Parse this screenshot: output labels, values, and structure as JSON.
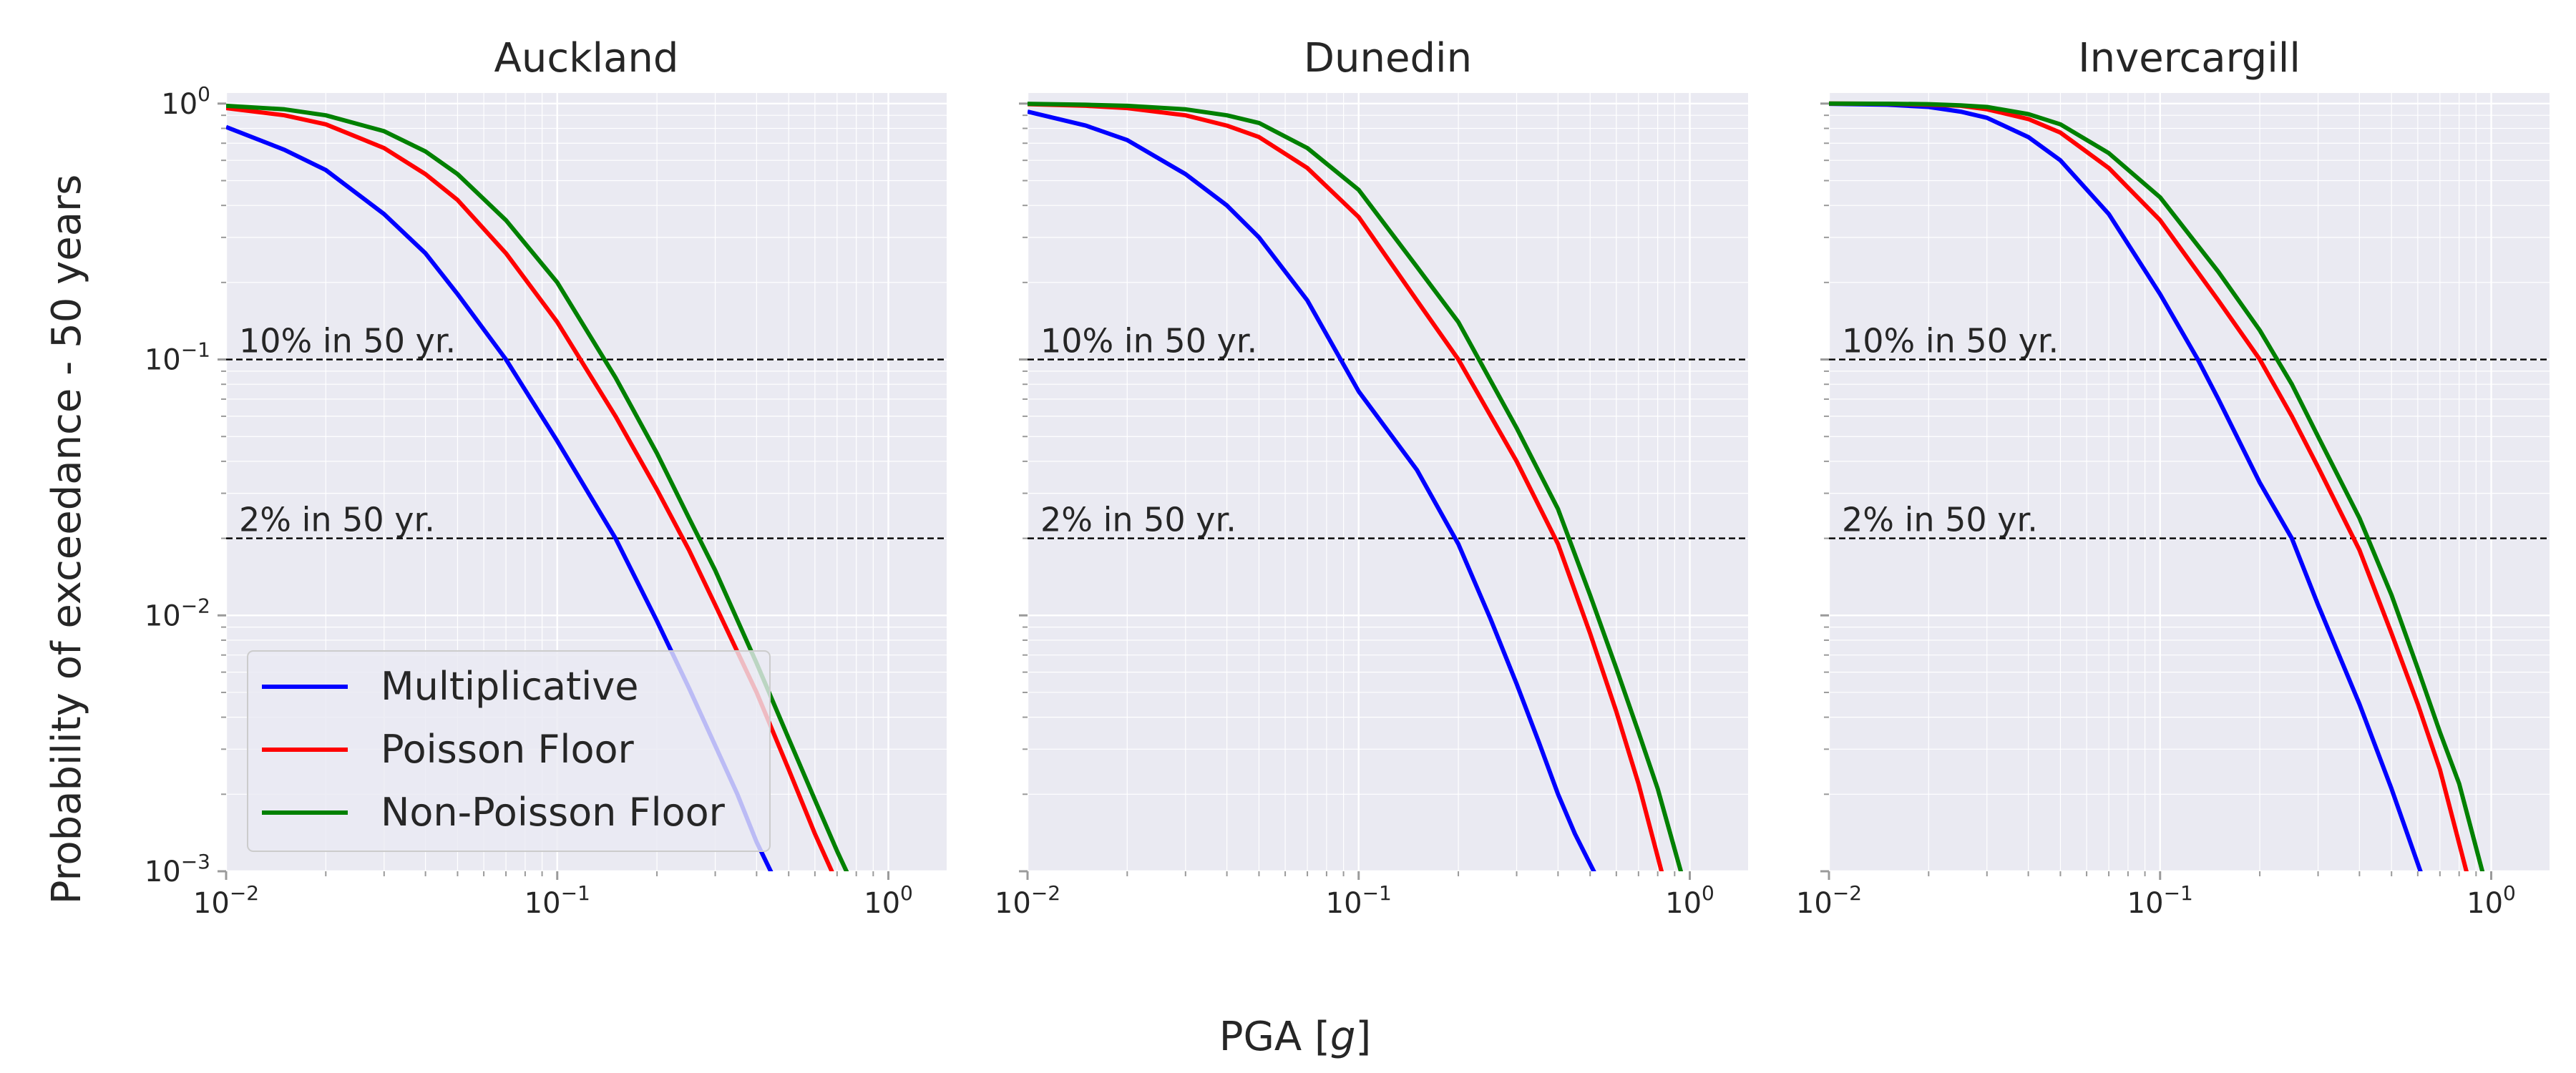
{
  "figure": {
    "ylabel": "Probability of exceedance - 50 years",
    "xlabel": "PGA [g]",
    "xlabel_parts": {
      "prefix": "PGA [",
      "var": "g",
      "suffix": "]"
    },
    "plot_background": "#eaeaf2",
    "grid_color": "#ffffff"
  },
  "legend": {
    "placement": "lower left of first panel",
    "entries": [
      {
        "label": "Multiplicative",
        "color": "#0000ff"
      },
      {
        "label": "Poisson Floor",
        "color": "#ff0000"
      },
      {
        "label": "Non-Poisson Floor",
        "color": "#008000"
      }
    ]
  },
  "chart_data": [
    {
      "type": "line",
      "title": "Auckland",
      "xscale": "log",
      "yscale": "log",
      "xlim": [
        0.01,
        1.5
      ],
      "ylim": [
        0.001,
        1.1
      ],
      "xticks": [
        {
          "base": "10",
          "exp": "−2",
          "value": 0.01
        },
        {
          "base": "10",
          "exp": "−1",
          "value": 0.1
        },
        {
          "base": "10",
          "exp": "0",
          "value": 1
        }
      ],
      "yticks": [
        {
          "base": "10",
          "exp": "0",
          "value": 1
        },
        {
          "base": "10",
          "exp": "−1",
          "value": 0.1
        },
        {
          "base": "10",
          "exp": "−2",
          "value": 0.01
        },
        {
          "base": "10",
          "exp": "−3",
          "value": 0.001
        }
      ],
      "reference_lines": [
        {
          "y": 0.1,
          "label": "10% in 50 yr."
        },
        {
          "y": 0.02,
          "label": "2% in 50 yr."
        }
      ],
      "series": [
        {
          "name": "Multiplicative",
          "color": "#0000ff",
          "x": [
            0.01,
            0.015,
            0.02,
            0.03,
            0.04,
            0.05,
            0.07,
            0.1,
            0.15,
            0.2,
            0.25,
            0.3,
            0.35,
            0.4,
            0.45
          ],
          "y": [
            0.81,
            0.66,
            0.55,
            0.37,
            0.26,
            0.18,
            0.1,
            0.048,
            0.02,
            0.0095,
            0.0052,
            0.0031,
            0.002,
            0.0013,
            0.00095
          ]
        },
        {
          "name": "Poisson Floor",
          "color": "#ff0000",
          "x": [
            0.01,
            0.015,
            0.02,
            0.03,
            0.04,
            0.05,
            0.07,
            0.1,
            0.15,
            0.2,
            0.25,
            0.3,
            0.4,
            0.5,
            0.6,
            0.7
          ],
          "y": [
            0.96,
            0.9,
            0.83,
            0.67,
            0.53,
            0.42,
            0.26,
            0.14,
            0.06,
            0.031,
            0.018,
            0.011,
            0.005,
            0.0025,
            0.0014,
            0.0009
          ]
        },
        {
          "name": "Non-Poisson Floor",
          "color": "#008000",
          "x": [
            0.01,
            0.015,
            0.02,
            0.03,
            0.04,
            0.05,
            0.07,
            0.1,
            0.15,
            0.2,
            0.25,
            0.3,
            0.4,
            0.5,
            0.6,
            0.7,
            0.77
          ],
          "y": [
            0.98,
            0.95,
            0.9,
            0.78,
            0.65,
            0.53,
            0.35,
            0.2,
            0.085,
            0.043,
            0.024,
            0.015,
            0.0065,
            0.0033,
            0.0019,
            0.0012,
            0.00092
          ]
        }
      ]
    },
    {
      "type": "line",
      "title": "Dunedin",
      "xscale": "log",
      "yscale": "log",
      "xlim": [
        0.01,
        1.5
      ],
      "ylim": [
        0.001,
        1.1
      ],
      "xticks": [
        {
          "base": "10",
          "exp": "−2",
          "value": 0.01
        },
        {
          "base": "10",
          "exp": "−1",
          "value": 0.1
        },
        {
          "base": "10",
          "exp": "0",
          "value": 1
        }
      ],
      "yticks": [],
      "reference_lines": [
        {
          "y": 0.1,
          "label": "10% in 50 yr."
        },
        {
          "y": 0.02,
          "label": "2% in 50 yr."
        }
      ],
      "series": [
        {
          "name": "Multiplicative",
          "color": "#0000ff",
          "x": [
            0.01,
            0.015,
            0.02,
            0.03,
            0.04,
            0.05,
            0.07,
            0.1,
            0.15,
            0.2,
            0.25,
            0.3,
            0.35,
            0.4,
            0.45,
            0.53
          ],
          "y": [
            0.93,
            0.82,
            0.72,
            0.53,
            0.4,
            0.3,
            0.17,
            0.075,
            0.037,
            0.019,
            0.0097,
            0.0054,
            0.0032,
            0.002,
            0.0014,
            0.00092
          ]
        },
        {
          "name": "Poisson Floor",
          "color": "#ff0000",
          "x": [
            0.01,
            0.015,
            0.02,
            0.03,
            0.04,
            0.05,
            0.07,
            0.1,
            0.15,
            0.2,
            0.3,
            0.4,
            0.5,
            0.6,
            0.7,
            0.83
          ],
          "y": [
            0.995,
            0.98,
            0.96,
            0.9,
            0.82,
            0.74,
            0.56,
            0.36,
            0.17,
            0.1,
            0.04,
            0.019,
            0.0085,
            0.0042,
            0.0022,
            0.00095
          ]
        },
        {
          "name": "Non-Poisson Floor",
          "color": "#008000",
          "x": [
            0.01,
            0.015,
            0.02,
            0.03,
            0.04,
            0.05,
            0.07,
            0.1,
            0.15,
            0.2,
            0.3,
            0.4,
            0.5,
            0.6,
            0.7,
            0.8,
            0.95
          ],
          "y": [
            0.998,
            0.99,
            0.98,
            0.95,
            0.9,
            0.84,
            0.67,
            0.46,
            0.23,
            0.14,
            0.054,
            0.026,
            0.012,
            0.0062,
            0.0035,
            0.0021,
            0.00095
          ]
        }
      ]
    },
    {
      "type": "line",
      "title": "Invercargill",
      "xscale": "log",
      "yscale": "log",
      "xlim": [
        0.01,
        1.5
      ],
      "ylim": [
        0.001,
        1.1
      ],
      "xticks": [
        {
          "base": "10",
          "exp": "−2",
          "value": 0.01
        },
        {
          "base": "10",
          "exp": "−1",
          "value": 0.1
        },
        {
          "base": "10",
          "exp": "0",
          "value": 1
        }
      ],
      "yticks": [],
      "reference_lines": [
        {
          "y": 0.1,
          "label": "10% in 50 yr."
        },
        {
          "y": 0.02,
          "label": "2% in 50 yr."
        }
      ],
      "series": [
        {
          "name": "Multiplicative",
          "color": "#0000ff",
          "x": [
            0.01,
            0.015,
            0.02,
            0.025,
            0.03,
            0.04,
            0.05,
            0.07,
            0.1,
            0.13,
            0.15,
            0.2,
            0.25,
            0.3,
            0.4,
            0.5,
            0.62
          ],
          "y": [
            0.998,
            0.99,
            0.97,
            0.93,
            0.88,
            0.74,
            0.6,
            0.37,
            0.18,
            0.1,
            0.07,
            0.033,
            0.02,
            0.011,
            0.0045,
            0.0021,
            0.00095
          ]
        },
        {
          "name": "Poisson Floor",
          "color": "#ff0000",
          "x": [
            0.01,
            0.015,
            0.02,
            0.025,
            0.03,
            0.04,
            0.05,
            0.07,
            0.1,
            0.15,
            0.2,
            0.25,
            0.3,
            0.4,
            0.5,
            0.6,
            0.7,
            0.85
          ],
          "y": [
            1.0,
            0.998,
            0.99,
            0.98,
            0.95,
            0.87,
            0.77,
            0.56,
            0.35,
            0.17,
            0.1,
            0.06,
            0.038,
            0.018,
            0.0085,
            0.0045,
            0.0025,
            0.00095
          ]
        },
        {
          "name": "Non-Poisson Floor",
          "color": "#008000",
          "x": [
            0.01,
            0.015,
            0.02,
            0.025,
            0.03,
            0.04,
            0.05,
            0.07,
            0.1,
            0.15,
            0.2,
            0.25,
            0.3,
            0.4,
            0.5,
            0.6,
            0.7,
            0.8,
            0.95
          ],
          "y": [
            1.0,
            0.999,
            0.995,
            0.985,
            0.97,
            0.91,
            0.83,
            0.64,
            0.43,
            0.22,
            0.13,
            0.08,
            0.05,
            0.024,
            0.012,
            0.0062,
            0.0035,
            0.0022,
            0.00095
          ]
        }
      ]
    }
  ]
}
